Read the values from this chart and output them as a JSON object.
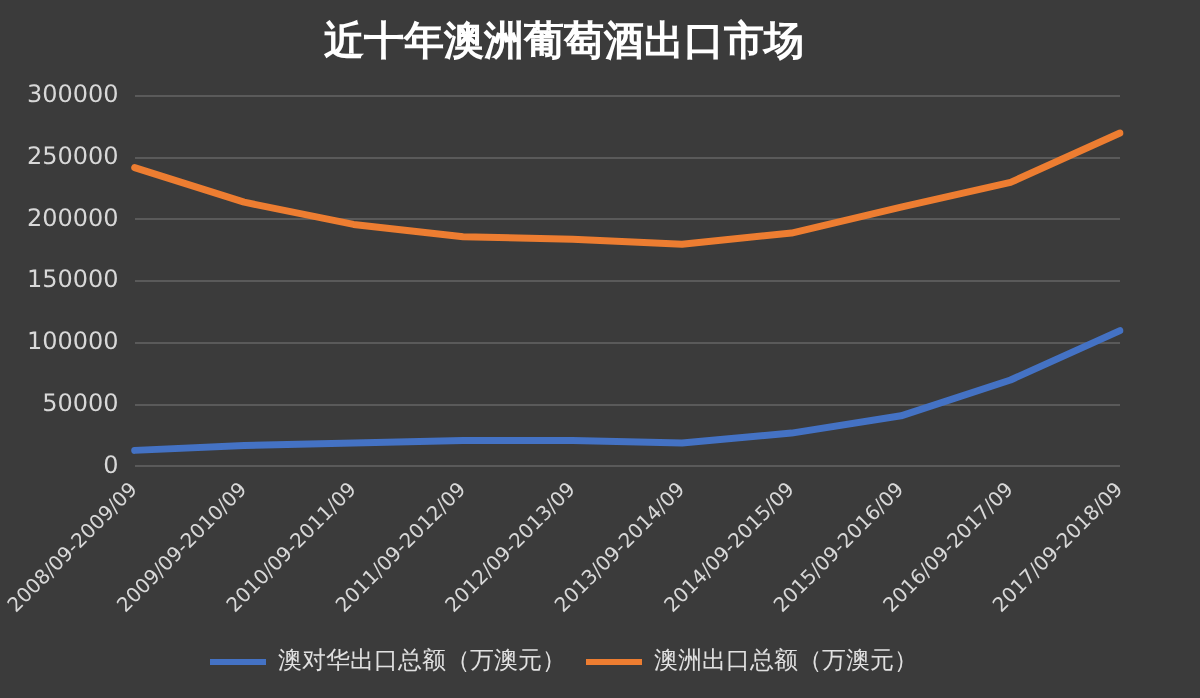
{
  "chart_data": {
    "type": "line",
    "title": "近十年澳洲葡萄酒出口市场",
    "categories": [
      "2008/09-2009/09",
      "2009/09-2010/09",
      "2010/09-2011/09",
      "2011/09-2012/09",
      "2012/09-2013/09",
      "2013/09-2014/09",
      "2014/09-2015/09",
      "2015/09-2016/09",
      "2016/09-2017/09",
      "2017/09-2018/09"
    ],
    "series": [
      {
        "name": "澳对华出口总额（万澳元）",
        "color": "#4472c4",
        "values": [
          13000,
          17000,
          19000,
          21000,
          21000,
          19000,
          27000,
          41000,
          70000,
          110000
        ]
      },
      {
        "name": "澳洲出口总额（万澳元）",
        "color": "#ed7d31",
        "values": [
          242000,
          214000,
          196000,
          186000,
          184000,
          180000,
          189000,
          210000,
          230000,
          270000
        ]
      }
    ],
    "ylim": [
      0,
      300000
    ],
    "yticks": [
      0,
      50000,
      100000,
      150000,
      200000,
      250000,
      300000
    ],
    "grid": "y",
    "legend": "bottom",
    "marker": "none",
    "line_style": "solid"
  }
}
